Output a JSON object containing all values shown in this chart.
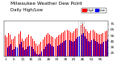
{
  "title": "Milwaukee Weather Dew Point",
  "subtitle": "Daily High/Low",
  "background_color": "#ffffff",
  "high_color": "#ff0000",
  "low_color": "#0000ff",
  "highlight_color": "#888888",
  "ylim": [
    20,
    80
  ],
  "yticks": [
    25,
    35,
    45,
    55,
    65,
    75
  ],
  "ytick_labels": [
    "25",
    "35",
    "45",
    "55",
    "65",
    "75"
  ],
  "highs": [
    55,
    52,
    60,
    56,
    48,
    50,
    54,
    52,
    58,
    62,
    50,
    46,
    50,
    52,
    56,
    54,
    50,
    46,
    42,
    38,
    40,
    44,
    48,
    52,
    56,
    60,
    56,
    54,
    52,
    50,
    53,
    55,
    57,
    59,
    61,
    63,
    65,
    63,
    61,
    60,
    62,
    66,
    68,
    70,
    73,
    76,
    70,
    66,
    62,
    60,
    63,
    65,
    62,
    60,
    58,
    56,
    58,
    60,
    62,
    64
  ],
  "lows": [
    36,
    34,
    38,
    40,
    30,
    32,
    36,
    34,
    40,
    44,
    34,
    30,
    32,
    36,
    38,
    36,
    32,
    28,
    24,
    22,
    24,
    28,
    32,
    36,
    40,
    42,
    40,
    38,
    36,
    34,
    37,
    39,
    41,
    43,
    45,
    47,
    49,
    47,
    45,
    44,
    46,
    50,
    52,
    54,
    57,
    60,
    54,
    50,
    46,
    44,
    47,
    49,
    46,
    44,
    42,
    40,
    42,
    44,
    46,
    48
  ],
  "highlight_days": [
    44,
    45,
    46
  ],
  "n_days": 60,
  "xtick_step": 5,
  "title_fontsize": 4.2,
  "tick_fontsize": 3.2,
  "legend_fontsize": 3.0
}
